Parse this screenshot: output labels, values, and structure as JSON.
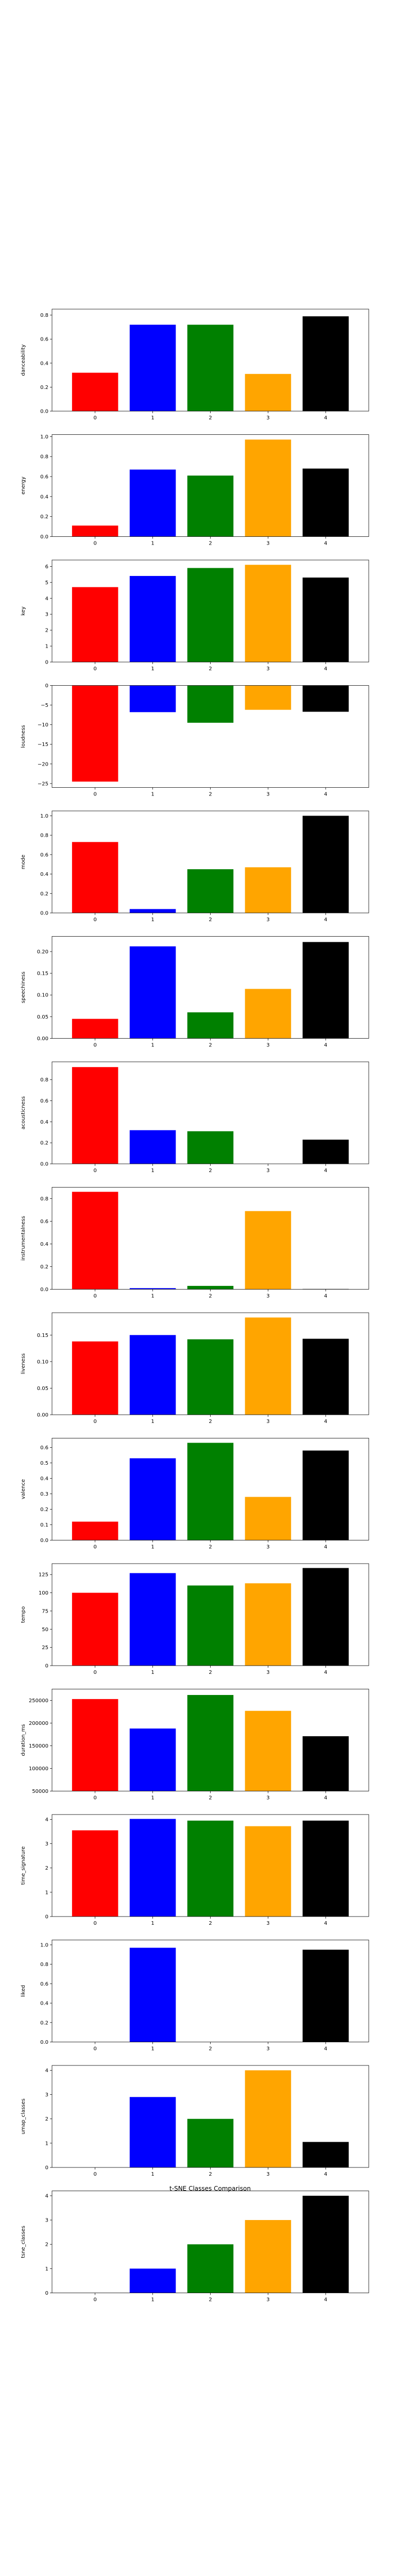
{
  "figure": {
    "title": "t-SNE Classes Comparison",
    "colors": [
      "#ff0000",
      "#0000ff",
      "#008000",
      "#ffa500",
      "#000000"
    ]
  },
  "chart_data": [
    {
      "type": "bar",
      "categories": [
        "0",
        "1",
        "2",
        "3",
        "4"
      ],
      "ylabel": "danceability",
      "values": [
        0.32,
        0.72,
        0.72,
        0.31,
        0.79
      ],
      "ylim": [
        0,
        0.85
      ],
      "yticks": [
        0.0,
        0.2,
        0.4,
        0.6,
        0.8
      ],
      "ytick_labels": [
        "0.0",
        "0.2",
        "0.4",
        "0.6",
        "0.8"
      ]
    },
    {
      "type": "bar",
      "categories": [
        "0",
        "1",
        "2",
        "3",
        "4"
      ],
      "ylabel": "energy",
      "values": [
        0.11,
        0.67,
        0.61,
        0.97,
        0.68
      ],
      "ylim": [
        0,
        1.02
      ],
      "yticks": [
        0.0,
        0.2,
        0.4,
        0.6,
        0.8,
        1.0
      ],
      "ytick_labels": [
        "0.0",
        "0.2",
        "0.4",
        "0.6",
        "0.8",
        "1.0"
      ]
    },
    {
      "type": "bar",
      "categories": [
        "0",
        "1",
        "2",
        "3",
        "4"
      ],
      "ylabel": "key",
      "values": [
        4.7,
        5.4,
        5.9,
        6.1,
        5.3
      ],
      "ylim": [
        0,
        6.4
      ],
      "yticks": [
        0,
        1,
        2,
        3,
        4,
        5,
        6
      ],
      "ytick_labels": [
        "0",
        "1",
        "2",
        "3",
        "4",
        "5",
        "6"
      ]
    },
    {
      "type": "bar",
      "categories": [
        "0",
        "1",
        "2",
        "3",
        "4"
      ],
      "ylabel": "loudness",
      "values": [
        -24.5,
        -6.8,
        -9.5,
        -6.2,
        -6.7
      ],
      "ylim": [
        -26,
        0
      ],
      "yticks": [
        0,
        -5,
        -10,
        -15,
        -20,
        -25
      ],
      "ytick_labels": [
        "0",
        "−5",
        "−10",
        "−15",
        "−20",
        "−25"
      ]
    },
    {
      "type": "bar",
      "categories": [
        "0",
        "1",
        "2",
        "3",
        "4"
      ],
      "ylabel": "mode",
      "values": [
        0.73,
        0.04,
        0.45,
        0.47,
        1.0
      ],
      "ylim": [
        0,
        1.05
      ],
      "yticks": [
        0.0,
        0.2,
        0.4,
        0.6,
        0.8,
        1.0
      ],
      "ytick_labels": [
        "0.0",
        "0.2",
        "0.4",
        "0.6",
        "0.8",
        "1.0"
      ]
    },
    {
      "type": "bar",
      "categories": [
        "0",
        "1",
        "2",
        "3",
        "4"
      ],
      "ylabel": "speechiness",
      "values": [
        0.045,
        0.212,
        0.06,
        0.114,
        0.222
      ],
      "ylim": [
        0,
        0.235
      ],
      "yticks": [
        0.0,
        0.05,
        0.1,
        0.15,
        0.2
      ],
      "ytick_labels": [
        "0.00",
        "0.05",
        "0.10",
        "0.15",
        "0.20"
      ]
    },
    {
      "type": "bar",
      "categories": [
        "0",
        "1",
        "2",
        "3",
        "4"
      ],
      "ylabel": "acousticness",
      "values": [
        0.92,
        0.32,
        0.31,
        0.0,
        0.23
      ],
      "ylim": [
        0,
        0.97
      ],
      "yticks": [
        0.0,
        0.2,
        0.4,
        0.6,
        0.8
      ],
      "ytick_labels": [
        "0.0",
        "0.2",
        "0.4",
        "0.6",
        "0.8"
      ]
    },
    {
      "type": "bar",
      "categories": [
        "0",
        "1",
        "2",
        "3",
        "4"
      ],
      "ylabel": "instrumentalness",
      "values": [
        0.86,
        0.01,
        0.03,
        0.69,
        0.003
      ],
      "ylim": [
        0,
        0.9
      ],
      "yticks": [
        0.0,
        0.2,
        0.4,
        0.6,
        0.8
      ],
      "ytick_labels": [
        "0.0",
        "0.2",
        "0.4",
        "0.6",
        "0.8"
      ]
    },
    {
      "type": "bar",
      "categories": [
        "0",
        "1",
        "2",
        "3",
        "4"
      ],
      "ylabel": "liveness",
      "values": [
        0.138,
        0.15,
        0.142,
        0.183,
        0.143
      ],
      "ylim": [
        0,
        0.192
      ],
      "yticks": [
        0.0,
        0.05,
        0.1,
        0.15
      ],
      "ytick_labels": [
        "0.00",
        "0.05",
        "0.10",
        "0.15"
      ]
    },
    {
      "type": "bar",
      "categories": [
        "0",
        "1",
        "2",
        "3",
        "4"
      ],
      "ylabel": "valence",
      "values": [
        0.12,
        0.53,
        0.63,
        0.28,
        0.58
      ],
      "ylim": [
        0,
        0.66
      ],
      "yticks": [
        0.0,
        0.1,
        0.2,
        0.3,
        0.4,
        0.5,
        0.6
      ],
      "ytick_labels": [
        "0.0",
        "0.1",
        "0.2",
        "0.3",
        "0.4",
        "0.5",
        "0.6"
      ]
    },
    {
      "type": "bar",
      "categories": [
        "0",
        "1",
        "2",
        "3",
        "4"
      ],
      "ylabel": "tempo",
      "values": [
        100,
        127,
        110,
        113,
        134
      ],
      "ylim": [
        0,
        140
      ],
      "yticks": [
        0,
        25,
        50,
        75,
        100,
        125
      ],
      "ytick_labels": [
        "0",
        "25",
        "50",
        "75",
        "100",
        "125"
      ]
    },
    {
      "type": "bar",
      "categories": [
        "0",
        "1",
        "2",
        "3",
        "4"
      ],
      "ylabel": "duration_ms",
      "values": [
        253000,
        188000,
        262000,
        227000,
        171000
      ],
      "ylim": [
        50000,
        275000
      ],
      "yticks": [
        50000,
        100000,
        150000,
        200000,
        250000
      ],
      "ytick_labels": [
        "50000",
        "100000",
        "150000",
        "200000",
        "250000"
      ]
    },
    {
      "type": "bar",
      "categories": [
        "0",
        "1",
        "2",
        "3",
        "4"
      ],
      "ylabel": "time_signature",
      "values": [
        3.55,
        4.02,
        3.95,
        3.72,
        3.95
      ],
      "ylim": [
        0,
        4.2
      ],
      "yticks": [
        0,
        1,
        2,
        3,
        4
      ],
      "ytick_labels": [
        "0",
        "1",
        "2",
        "3",
        "4"
      ]
    },
    {
      "type": "bar",
      "categories": [
        "0",
        "1",
        "2",
        "3",
        "4"
      ],
      "ylabel": "liked",
      "values": [
        0,
        0.97,
        0,
        0,
        0.95
      ],
      "ylim": [
        0,
        1.05
      ],
      "yticks": [
        0.0,
        0.2,
        0.4,
        0.6,
        0.8,
        1.0
      ],
      "ytick_labels": [
        "0.0",
        "0.2",
        "0.4",
        "0.6",
        "0.8",
        "1.0"
      ]
    },
    {
      "type": "bar",
      "categories": [
        "0",
        "1",
        "2",
        "3",
        "4"
      ],
      "ylabel": "umap_classes",
      "values": [
        0,
        2.9,
        2.0,
        4.0,
        1.05
      ],
      "ylim": [
        0,
        4.2
      ],
      "yticks": [
        0,
        1,
        2,
        3,
        4
      ],
      "ytick_labels": [
        "0",
        "1",
        "2",
        "3",
        "4"
      ]
    },
    {
      "type": "bar",
      "categories": [
        "0",
        "1",
        "2",
        "3",
        "4"
      ],
      "ylabel": "tsne_classes",
      "values": [
        0,
        1,
        2,
        3,
        4
      ],
      "ylim": [
        0,
        4.2
      ],
      "yticks": [
        0,
        1,
        2,
        3,
        4
      ],
      "ytick_labels": [
        "0",
        "1",
        "2",
        "3",
        "4"
      ]
    }
  ]
}
